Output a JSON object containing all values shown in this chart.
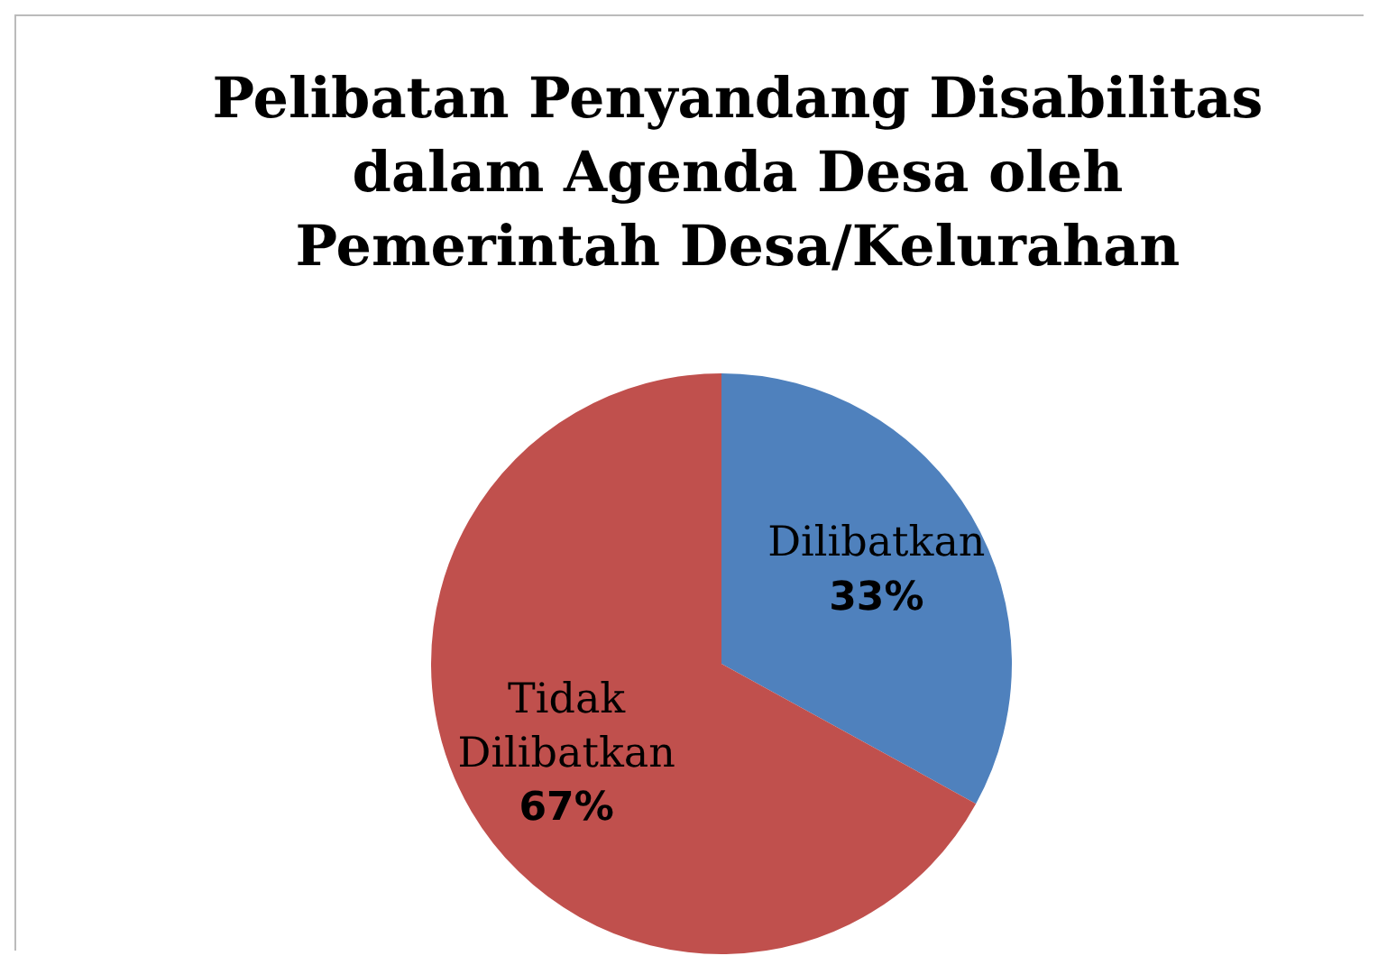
{
  "chart_data": {
    "type": "pie",
    "title": "Pelibatan Penyandang Disabilitas dalam Agenda Desa oleh Pemerintah Desa/Kelurahan",
    "categories": [
      "Dilibatkan",
      "Tidak Dilibatkan"
    ],
    "values": [
      33,
      67
    ],
    "colors": [
      "#4f81bd",
      "#c0504d"
    ],
    "value_labels": [
      "33%",
      "67%"
    ],
    "legend": false
  }
}
